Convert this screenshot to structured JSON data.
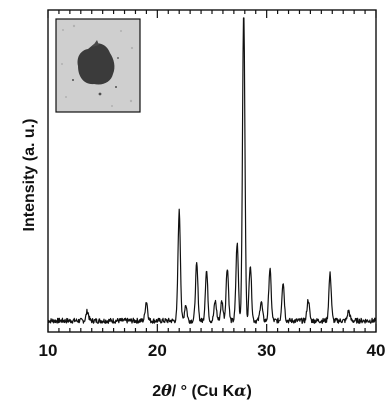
{
  "chart_data": {
    "type": "line",
    "xlabel_parts": {
      "prefix": "2",
      "theta": "θ",
      "middle": "/ ° (Cu K",
      "alpha": "α",
      "suffix": ")"
    },
    "ylabel": "Intensity (a. u.)",
    "xlim": [
      10,
      40
    ],
    "ylim": [
      0,
      100
    ],
    "x_ticks": [
      10,
      20,
      30,
      40
    ],
    "x_tick_labels": [
      "10",
      "20",
      "30",
      "40"
    ],
    "minor_tick_step": 1,
    "grid": false,
    "inset": "photo-of-dark-sample",
    "baseline": 3.5,
    "peaks": [
      {
        "x": 13.6,
        "h": 3.0
      },
      {
        "x": 19.0,
        "h": 6.0
      },
      {
        "x": 22.0,
        "h": 34.0
      },
      {
        "x": 22.6,
        "h": 5.0
      },
      {
        "x": 23.6,
        "h": 17.5
      },
      {
        "x": 24.5,
        "h": 15.5
      },
      {
        "x": 25.3,
        "h": 6.0
      },
      {
        "x": 25.9,
        "h": 6.0
      },
      {
        "x": 26.4,
        "h": 16.5
      },
      {
        "x": 27.3,
        "h": 24.0
      },
      {
        "x": 27.9,
        "h": 96.0
      },
      {
        "x": 28.5,
        "h": 17.5
      },
      {
        "x": 29.5,
        "h": 6.0
      },
      {
        "x": 30.3,
        "h": 16.0
      },
      {
        "x": 31.5,
        "h": 12.0
      },
      {
        "x": 33.8,
        "h": 6.5
      },
      {
        "x": 35.8,
        "h": 14.5
      },
      {
        "x": 37.5,
        "h": 3.0
      }
    ]
  }
}
